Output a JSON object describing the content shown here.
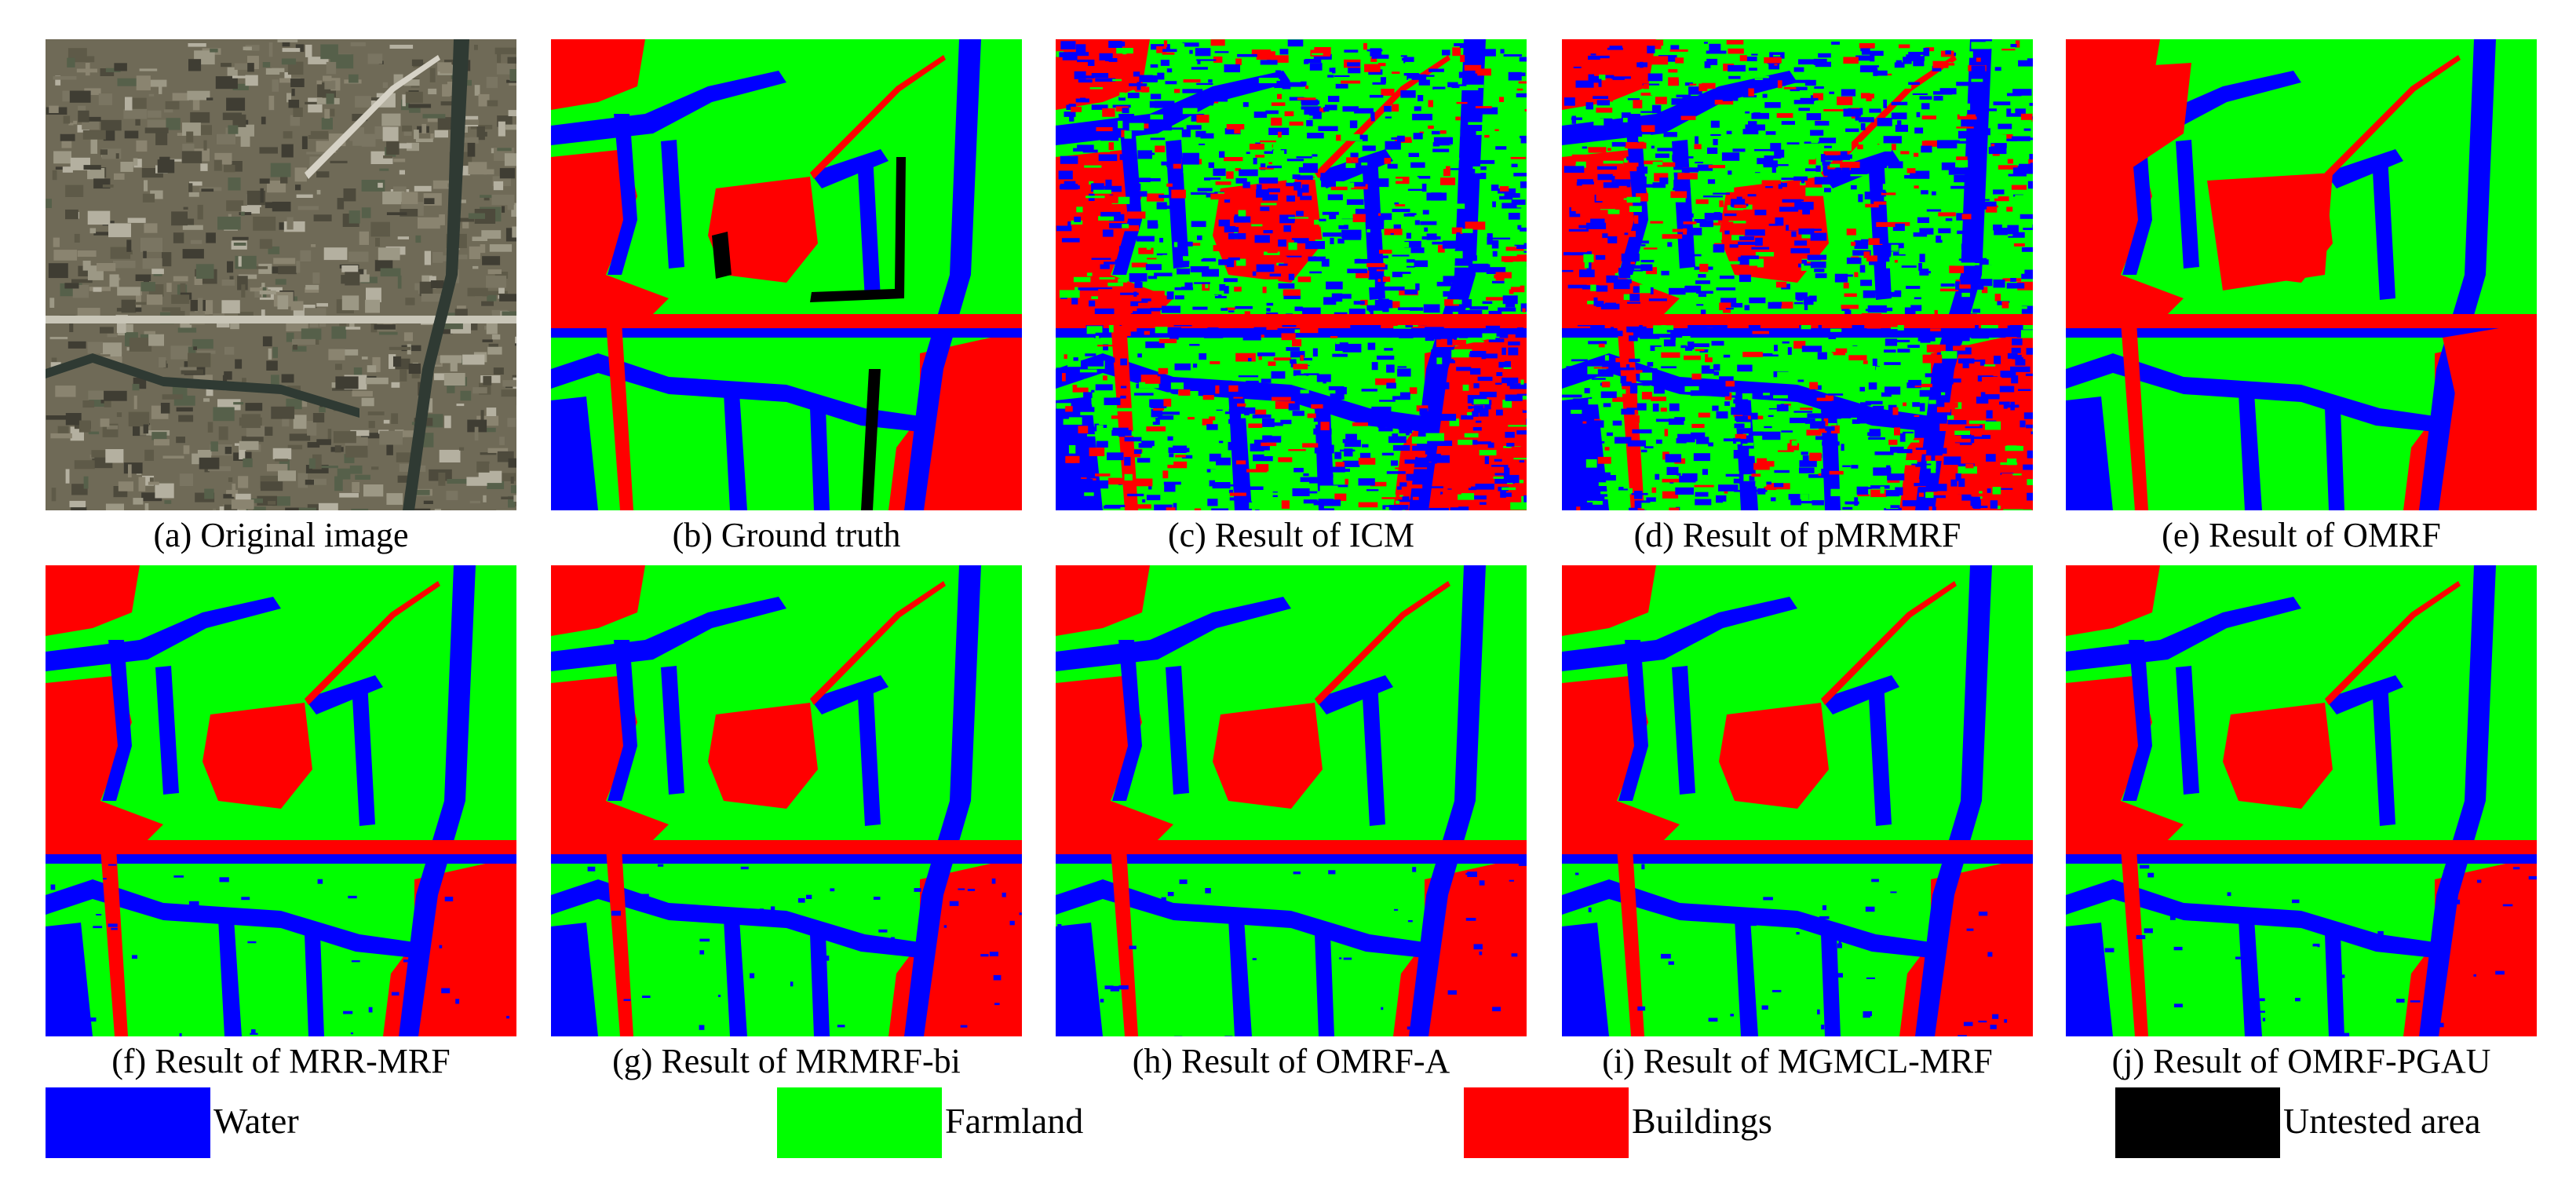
{
  "colors": {
    "water": "#0000ff",
    "farmland": "#00ff00",
    "buildings": "#ff0000",
    "untested": "#000000"
  },
  "panels": [
    {
      "caption": "(a) Original image",
      "kind": "photo"
    },
    {
      "caption": "(b) Ground truth",
      "kind": "truth"
    },
    {
      "caption": "(c) Result of ICM",
      "kind": "noisy"
    },
    {
      "caption": "(d) Result of pMRMRF",
      "kind": "noisy"
    },
    {
      "caption": "(e) Result of OMRF",
      "kind": "blocky"
    },
    {
      "caption": "(f) Result of MRR-MRF",
      "kind": "smooth"
    },
    {
      "caption": "(g) Result of MRMRF-bi",
      "kind": "smooth"
    },
    {
      "caption": "(h) Result of OMRF-A",
      "kind": "smooth"
    },
    {
      "caption": "(i) Result of MGMCL-MRF",
      "kind": "smooth"
    },
    {
      "caption": "(j) Result of OMRF-PGAU",
      "kind": "smooth"
    }
  ],
  "legend": [
    {
      "label": "Water",
      "color_key": "water"
    },
    {
      "label": "Farmland",
      "color_key": "farmland"
    },
    {
      "label": "Buildings",
      "color_key": "buildings"
    },
    {
      "label": "Untested area",
      "color_key": "untested"
    }
  ]
}
